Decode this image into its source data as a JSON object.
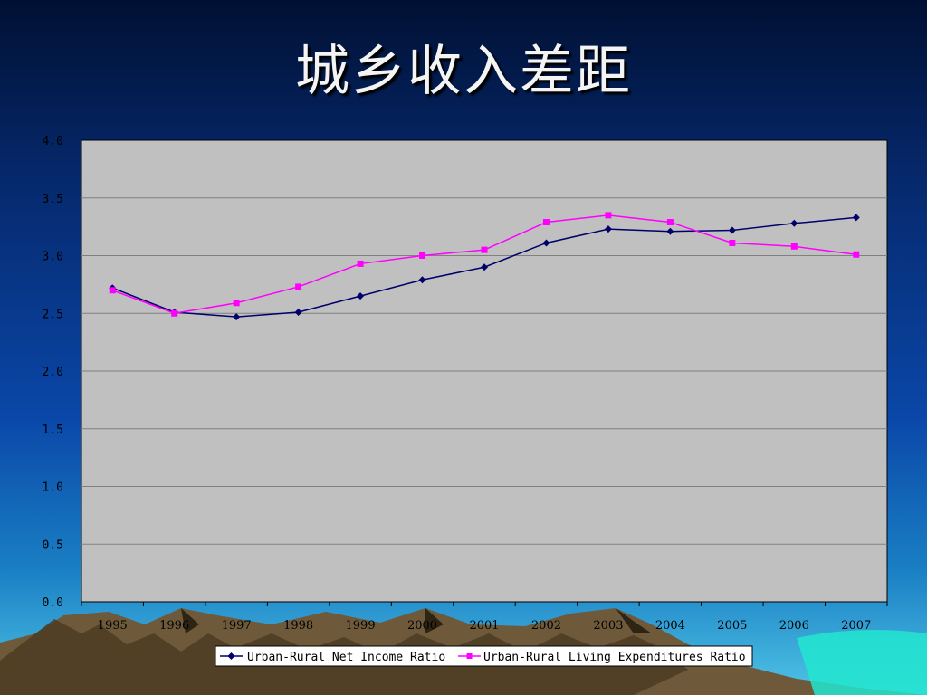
{
  "slide": {
    "title": "城乡收入差距"
  },
  "colors": {
    "plot_background": "#c0c0c0",
    "income_series": "#00006b",
    "expenditure_series": "#ff00ff",
    "gridline": "#808080"
  },
  "chart_data": {
    "type": "line",
    "title": "",
    "xlabel": "",
    "ylabel": "",
    "categories": [
      "1995",
      "1996",
      "1997",
      "1998",
      "1999",
      "2000",
      "2001",
      "2002",
      "2003",
      "2004",
      "2005",
      "2006",
      "2007"
    ],
    "ylim": [
      0,
      4
    ],
    "yticks": [
      "0.0",
      "0.5",
      "1.0",
      "1.5",
      "2.0",
      "2.5",
      "3.0",
      "3.5",
      "4.0"
    ],
    "grid": true,
    "legend_position": "bottom",
    "series": [
      {
        "name": "Urban-Rural Net Income Ratio",
        "marker": "diamond",
        "values": [
          2.72,
          2.51,
          2.47,
          2.51,
          2.65,
          2.79,
          2.9,
          3.11,
          3.23,
          3.21,
          3.22,
          3.28,
          3.33
        ]
      },
      {
        "name": "Urban-Rural Living Expenditures Ratio",
        "marker": "square",
        "values": [
          2.7,
          2.5,
          2.59,
          2.73,
          2.93,
          3.0,
          3.05,
          3.29,
          3.35,
          3.29,
          3.11,
          3.08,
          3.01
        ]
      }
    ]
  }
}
